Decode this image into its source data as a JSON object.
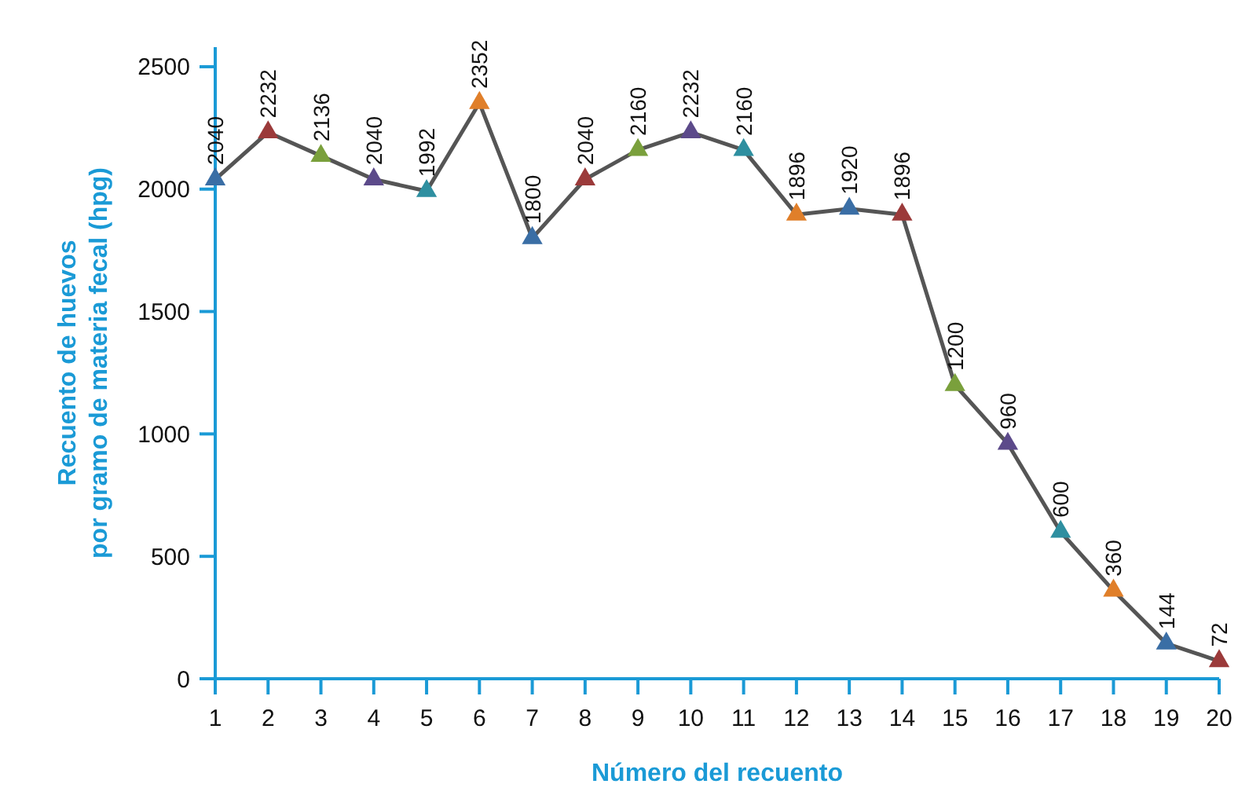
{
  "chart_data": {
    "type": "line",
    "xlabel": "Número del recuento",
    "ylabel": "Recuento de huevos\npor gramo de materia fecal (hpg)",
    "x": [
      1,
      2,
      3,
      4,
      5,
      6,
      7,
      8,
      9,
      10,
      11,
      12,
      13,
      14,
      15,
      16,
      17,
      18,
      19,
      20
    ],
    "xlim": [
      1,
      20
    ],
    "xticks": [
      1,
      2,
      3,
      4,
      5,
      6,
      7,
      8,
      9,
      10,
      11,
      12,
      13,
      14,
      15,
      16,
      17,
      18,
      19,
      20
    ],
    "ylim": [
      0,
      2580
    ],
    "yticks": [
      0,
      500,
      1000,
      1500,
      2000,
      2500
    ],
    "series": [
      {
        "color": "#555555",
        "values": [
          2040,
          2232,
          2136,
          2040,
          1992,
          2352,
          1800,
          2040,
          2160,
          2232,
          2160,
          1896,
          1920,
          1896,
          1200,
          960,
          600,
          360,
          144,
          72
        ],
        "colors": [
          "#3a6ea5",
          "#9b3a3a",
          "#7aa03c",
          "#5c4a8a",
          "#2e8fa0",
          "#e07f2a",
          "#3a6ea5",
          "#9b3a3a",
          "#7aa03c",
          "#5c4a8a",
          "#2e8fa0",
          "#e07f2a",
          "#3a6ea5",
          "#9b3a3a",
          "#7aa03c",
          "#5c4a8a",
          "#2e8fa0",
          "#e07f2a",
          "#3a6ea5",
          "#9b3a3a"
        ]
      }
    ],
    "marker": "triangle",
    "data_labels": true
  }
}
